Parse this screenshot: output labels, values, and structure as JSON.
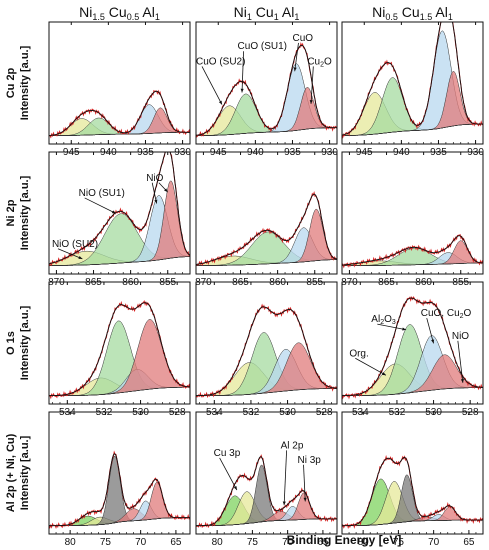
{
  "figure": {
    "x_axis_label": "Binding Energy [eV]",
    "columns": [
      {
        "main": "Ni",
        "parts": [
          [
            "1.5",
            " Cu"
          ],
          [
            "0.5",
            " Al"
          ],
          [
            "1",
            ""
          ]
        ]
      },
      {
        "main": "Ni",
        "parts": [
          [
            "1",
            " Cu"
          ],
          [
            "1",
            " Al"
          ],
          [
            "1",
            ""
          ]
        ]
      },
      {
        "main": "Ni",
        "parts": [
          [
            "0.5",
            " Cu"
          ],
          [
            "1.5",
            " Al"
          ],
          [
            "1",
            ""
          ]
        ]
      }
    ],
    "rows": [
      {
        "label_line1": "Cu 2p",
        "label_line2": "Intensity [a.u.]"
      },
      {
        "label_line1": "Ni 2p",
        "label_line2": "Intensity [a.u.]"
      },
      {
        "label_line1": "O 1s",
        "label_line2": "Intensity [a.u.]"
      },
      {
        "label_line1": "Al 2p (+ Ni, Cu)",
        "label_line2": "Intensity [a.u.]"
      }
    ]
  },
  "chart_data": [
    {
      "type": "line",
      "region": "Cu 2p",
      "sample": "Ni1.5Cu0.5Al1",
      "x_reversed": true,
      "xlim": [
        948,
        929
      ],
      "xticks": [
        945,
        940,
        935,
        930
      ],
      "components": [
        {
          "name": "CuO (SU2)",
          "center": 943.6,
          "height": 0.22,
          "width": 1.5,
          "color": "#e6e89a"
        },
        {
          "name": "CuO (SU1)",
          "center": 941.3,
          "height": 0.22,
          "width": 1.4,
          "color": "#a6dba0"
        },
        {
          "name": "CuO",
          "center": 934.5,
          "height": 0.38,
          "width": 1.2,
          "color": "#b8d8ef"
        },
        {
          "name": "Cu2O",
          "center": 933.0,
          "height": 0.33,
          "width": 0.9,
          "color": "#e07b7b"
        }
      ],
      "annotations": []
    },
    {
      "type": "line",
      "region": "Cu 2p",
      "sample": "Ni1Cu1Al1",
      "x_reversed": true,
      "xlim": [
        948,
        929
      ],
      "xticks": [
        945,
        940,
        935,
        930
      ],
      "components": [
        {
          "name": "CuO (SU2)",
          "center": 943.5,
          "height": 0.38,
          "width": 1.5,
          "color": "#e6e89a"
        },
        {
          "name": "CuO (SU1)",
          "center": 941.3,
          "height": 0.52,
          "width": 1.4,
          "color": "#a6dba0"
        },
        {
          "name": "CuO",
          "center": 934.5,
          "height": 0.88,
          "width": 1.2,
          "color": "#b8d8ef"
        },
        {
          "name": "Cu2O",
          "center": 933.0,
          "height": 0.55,
          "width": 0.9,
          "color": "#e07b7b"
        }
      ],
      "annotations": [
        {
          "text": "CuO (SU2)",
          "sub": "",
          "x": 948,
          "y": 0.97,
          "tx": 944.5,
          "ty": 0.44
        },
        {
          "text": "CuO (SU1)",
          "sub": "",
          "x": 942.4,
          "y": 1.17,
          "tx": 941.8,
          "ty": 0.6
        },
        {
          "text": "CuO",
          "sub": "",
          "x": 935.0,
          "y": 1.28,
          "tx": 934.7,
          "ty": 0.88
        },
        {
          "text": "Cu",
          "sub": "2",
          "tail": "O",
          "x": 933.0,
          "y": 0.97,
          "tx": 932.5,
          "ty": 0.45
        }
      ]
    },
    {
      "type": "line",
      "region": "Cu 2p",
      "sample": "Ni0.5Cu1.5Al1",
      "x_reversed": true,
      "xlim": [
        948,
        929
      ],
      "xticks": [
        945,
        940,
        935,
        930
      ],
      "components": [
        {
          "name": "CuO (SU2)",
          "center": 943.6,
          "height": 0.55,
          "width": 1.5,
          "color": "#e6e89a"
        },
        {
          "name": "CuO (SU1)",
          "center": 941.2,
          "height": 0.72,
          "width": 1.4,
          "color": "#a6dba0"
        },
        {
          "name": "CuO",
          "center": 934.5,
          "height": 1.28,
          "width": 1.2,
          "color": "#b8d8ef"
        },
        {
          "name": "Cu2O",
          "center": 933.0,
          "height": 0.72,
          "width": 0.9,
          "color": "#e07b7b"
        }
      ],
      "annotations": []
    },
    {
      "type": "line",
      "region": "Ni 2p",
      "sample": "Ni1.5Cu0.5Al1",
      "x_reversed": true,
      "xlim": [
        871,
        852
      ],
      "xticks": [
        870,
        865,
        860,
        855
      ],
      "components": [
        {
          "name": "NiO (SU2)",
          "center": 866.0,
          "height": 0.18,
          "width": 2.5,
          "color": "#e6e89a"
        },
        {
          "name": "NiO (SU1)",
          "center": 861.3,
          "height": 0.65,
          "width": 2.2,
          "color": "#a6dba0"
        },
        {
          "name": "NiO",
          "center": 856.2,
          "height": 0.85,
          "width": 1.2,
          "color": "#b8d8ef"
        },
        {
          "name": "NiO",
          "center": 854.6,
          "height": 1.02,
          "width": 0.9,
          "color": "#e07b7b"
        }
      ],
      "annotations": [
        {
          "text": "NiO (SU2)",
          "sub": "",
          "x": 870.6,
          "y": 0.28,
          "tx": 866.5,
          "ty": 0.12
        },
        {
          "text": "NiO (SU1)",
          "sub": "",
          "x": 867.0,
          "y": 0.95,
          "tx": 862.0,
          "ty": 0.72
        },
        {
          "text": "NiO",
          "sub": "",
          "x": 857.9,
          "y": 1.15,
          "tx": 856.5,
          "ty": 0.85
        },
        {
          "text": "",
          "sub": "",
          "x": 857.0,
          "y": 1.15,
          "tx": 855.0,
          "ty": 1.0
        }
      ]
    },
    {
      "type": "line",
      "region": "Ni 2p",
      "sample": "Ni1Cu1Al1",
      "x_reversed": true,
      "xlim": [
        871,
        852
      ],
      "xticks": [
        870,
        865,
        860,
        855
      ],
      "components": [
        {
          "name": "NiO (SU2)",
          "center": 866.0,
          "height": 0.12,
          "width": 2.5,
          "color": "#e6e89a"
        },
        {
          "name": "NiO (SU1)",
          "center": 861.3,
          "height": 0.42,
          "width": 2.2,
          "color": "#a6dba0"
        },
        {
          "name": "NiO",
          "center": 856.5,
          "height": 0.45,
          "width": 1.2,
          "color": "#b8d8ef"
        },
        {
          "name": "NiO",
          "center": 854.8,
          "height": 0.68,
          "width": 0.9,
          "color": "#e07b7b"
        }
      ],
      "annotations": []
    },
    {
      "type": "line",
      "region": "Ni 2p",
      "sample": "Ni0.5Cu1.5Al1",
      "x_reversed": true,
      "xlim": [
        871,
        852
      ],
      "xticks": [
        870,
        865,
        860,
        855
      ],
      "components": [
        {
          "name": "NiO (SU2)",
          "center": 866.0,
          "height": 0.06,
          "width": 2.5,
          "color": "#e6e89a"
        },
        {
          "name": "NiO (SU1)",
          "center": 861.2,
          "height": 0.22,
          "width": 2.2,
          "color": "#a6dba0"
        },
        {
          "name": "NiO",
          "center": 856.7,
          "height": 0.15,
          "width": 1.2,
          "color": "#b8d8ef"
        },
        {
          "name": "NiO",
          "center": 855.0,
          "height": 0.3,
          "width": 0.9,
          "color": "#e07b7b"
        }
      ],
      "annotations": []
    },
    {
      "type": "line",
      "region": "O 1s",
      "sample": "Ni1.5Cu0.5Al1",
      "x_reversed": true,
      "xlim": [
        535,
        527.3
      ],
      "xticks": [
        534,
        532,
        530,
        528
      ],
      "components": [
        {
          "name": "Org.",
          "center": 532.2,
          "height": 0.22,
          "width": 0.8,
          "color": "#e6e89a"
        },
        {
          "name": "Al2O3",
          "center": 531.2,
          "height": 0.95,
          "width": 0.65,
          "color": "#a6dba0"
        },
        {
          "name": "CuO, Cu2O",
          "center": 530.2,
          "height": 0.28,
          "width": 0.6,
          "color": "#b8d8ef"
        },
        {
          "name": "NiO",
          "center": 529.5,
          "height": 0.92,
          "width": 0.65,
          "color": "#e07b7b"
        }
      ],
      "annotations": []
    },
    {
      "type": "line",
      "region": "O 1s",
      "sample": "Ni1Cu1Al1",
      "x_reversed": true,
      "xlim": [
        535,
        527.3
      ],
      "xticks": [
        534,
        532,
        530,
        528
      ],
      "components": [
        {
          "name": "Org.",
          "center": 532.1,
          "height": 0.42,
          "width": 0.8,
          "color": "#e6e89a"
        },
        {
          "name": "Al2O3",
          "center": 531.3,
          "height": 0.8,
          "width": 0.65,
          "color": "#a6dba0"
        },
        {
          "name": "CuO, Cu2O",
          "center": 530.1,
          "height": 0.55,
          "width": 0.6,
          "color": "#b8d8ef"
        },
        {
          "name": "NiO",
          "center": 529.4,
          "height": 0.62,
          "width": 0.65,
          "color": "#e07b7b"
        }
      ],
      "annotations": []
    },
    {
      "type": "line",
      "region": "O 1s",
      "sample": "Ni0.5Cu1.5Al1",
      "x_reversed": true,
      "xlim": [
        535,
        527.3
      ],
      "xticks": [
        534,
        532,
        530,
        528
      ],
      "components": [
        {
          "name": "Org.",
          "center": 532.1,
          "height": 0.4,
          "width": 0.8,
          "color": "#e6e89a"
        },
        {
          "name": "Al2O3",
          "center": 531.3,
          "height": 0.9,
          "width": 0.65,
          "color": "#a6dba0"
        },
        {
          "name": "CuO, Cu2O",
          "center": 530.1,
          "height": 0.72,
          "width": 0.6,
          "color": "#b8d8ef"
        },
        {
          "name": "NiO",
          "center": 529.4,
          "height": 0.45,
          "width": 0.65,
          "color": "#e07b7b"
        }
      ],
      "annotations": [
        {
          "text": "Org.",
          "sub": "",
          "x": 534.6,
          "y": 0.55,
          "tx": 532.6,
          "ty": 0.3
        },
        {
          "text": "Al",
          "sub": "2",
          "tail": "O",
          "sub2": "3",
          "x": 533.4,
          "y": 1.0,
          "tx": 531.5,
          "ty": 0.9
        },
        {
          "text": "CuO, Cu",
          "sub": "2",
          "tail": "O",
          "x": 530.7,
          "y": 1.08,
          "tx": 530.0,
          "ty": 0.72
        },
        {
          "text": "NiO",
          "sub": "",
          "x": 529.0,
          "y": 0.78,
          "tx": 528.4,
          "ty": 0.2
        }
      ]
    },
    {
      "type": "line",
      "region": "Al 2p (+ Ni, Cu)",
      "sample": "Ni1.5Cu0.5Al1",
      "x_reversed": true,
      "xlim": [
        83,
        63
      ],
      "xticks": [
        80,
        75,
        70,
        65
      ],
      "components": [
        {
          "name": "Cu 3p",
          "center": 77.5,
          "height": 0.12,
          "width": 1.3,
          "color": "#7fd35f"
        },
        {
          "name": "Cu 3p",
          "center": 75.8,
          "height": 0.1,
          "width": 1.2,
          "color": "#e6e89a"
        },
        {
          "name": "Al 2p",
          "center": 73.7,
          "height": 0.88,
          "width": 0.8,
          "color": "#7a7a7a"
        },
        {
          "name": "Ni 3p",
          "center": 71.0,
          "height": 0.16,
          "width": 1.1,
          "color": "#e07b7b"
        },
        {
          "name": "Ni 3p",
          "center": 69.3,
          "height": 0.25,
          "width": 0.8,
          "color": "#b8d8ef"
        },
        {
          "name": "Ni 3p",
          "center": 67.7,
          "height": 0.48,
          "width": 0.8,
          "color": "#e07b7b"
        }
      ],
      "annotations": []
    },
    {
      "type": "line",
      "region": "Al 2p (+ Ni, Cu)",
      "sample": "Ni1Cu1Al1",
      "x_reversed": true,
      "xlim": [
        83,
        63
      ],
      "xticks": [
        80,
        75,
        70,
        65
      ],
      "components": [
        {
          "name": "Cu 3p",
          "center": 77.5,
          "height": 0.38,
          "width": 1.3,
          "color": "#7fd35f"
        },
        {
          "name": "Cu 3p",
          "center": 75.8,
          "height": 0.42,
          "width": 1.2,
          "color": "#e6e89a"
        },
        {
          "name": "Al 2p",
          "center": 73.7,
          "height": 0.75,
          "width": 0.8,
          "color": "#7a7a7a"
        },
        {
          "name": "Ni 3p",
          "center": 71.0,
          "height": 0.12,
          "width": 1.1,
          "color": "#e07b7b"
        },
        {
          "name": "Ni 3p",
          "center": 69.3,
          "height": 0.18,
          "width": 0.8,
          "color": "#b8d8ef"
        },
        {
          "name": "Ni 3p",
          "center": 67.7,
          "height": 0.35,
          "width": 0.8,
          "color": "#e07b7b"
        }
      ],
      "annotations": [
        {
          "text": "Cu 3p",
          "sub": "",
          "x": 80.5,
          "y": 0.95,
          "tx": 77.2,
          "ty": 0.5
        },
        {
          "text": "Al 2p",
          "sub": "",
          "x": 71.0,
          "y": 1.05,
          "tx": 70.5,
          "ty": 0.3
        },
        {
          "text": "Ni 3p",
          "sub": "",
          "x": 68.6,
          "y": 0.86,
          "tx": 67.5,
          "ty": 0.35
        }
      ]
    },
    {
      "type": "line",
      "region": "Al 2p (+ Ni, Cu)",
      "sample": "Ni0.5Cu1.5Al1",
      "x_reversed": true,
      "xlim": [
        83,
        63
      ],
      "xticks": [
        80,
        75,
        70,
        65
      ],
      "components": [
        {
          "name": "Cu 3p",
          "center": 77.5,
          "height": 0.6,
          "width": 1.3,
          "color": "#7fd35f"
        },
        {
          "name": "Cu 3p",
          "center": 75.6,
          "height": 0.55,
          "width": 1.2,
          "color": "#e6e89a"
        },
        {
          "name": "Al 2p",
          "center": 73.8,
          "height": 0.62,
          "width": 0.8,
          "color": "#7a7a7a"
        },
        {
          "name": "Ni 3p",
          "center": 71.0,
          "height": 0.05,
          "width": 1.1,
          "color": "#e07b7b"
        },
        {
          "name": "Ni 3p",
          "center": 69.3,
          "height": 0.08,
          "width": 0.8,
          "color": "#b8d8ef"
        },
        {
          "name": "Ni 3p",
          "center": 67.7,
          "height": 0.18,
          "width": 0.8,
          "color": "#e07b7b"
        }
      ],
      "annotations": []
    }
  ]
}
